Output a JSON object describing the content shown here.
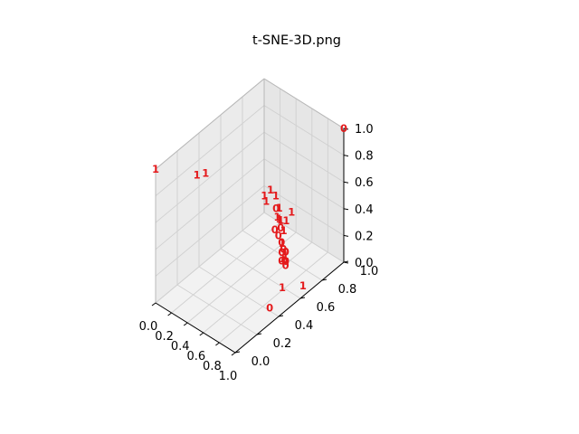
{
  "chart_data": {
    "type": "scatter",
    "projection": "3d",
    "title": "t-SNE-3D.png",
    "xlabel": "",
    "ylabel": "",
    "zlabel": "",
    "xlim": [
      0,
      1
    ],
    "ylim": [
      0,
      1
    ],
    "zlim": [
      0,
      1
    ],
    "x_ticks": [
      "0.0",
      "0.2",
      "0.4",
      "0.6",
      "0.8",
      "1.0"
    ],
    "y_ticks": [
      "0.0",
      "0.2",
      "0.4",
      "0.6",
      "0.8",
      "1.0"
    ],
    "z_ticks": [
      "0.0",
      "0.2",
      "0.4",
      "0.6",
      "0.8",
      "1.0"
    ],
    "grid": true,
    "marker": "text-label",
    "point_color": "#e41a1c",
    "pane_color": "#f2f2f2",
    "grid_color": "#d0d0d0",
    "points": [
      {
        "x": 0.0,
        "y": 0.0,
        "z": 1.0,
        "label": "1"
      },
      {
        "x": 1.0,
        "y": 1.0,
        "z": 1.0,
        "label": "0"
      },
      {
        "x": 0.0,
        "y": 0.38,
        "z": 0.7,
        "label": "1"
      },
      {
        "x": 0.0,
        "y": 0.46,
        "z": 0.66,
        "label": "1"
      },
      {
        "x": 0.91,
        "y": 0.69,
        "z": 0.0,
        "label": "1"
      },
      {
        "x": 0.86,
        "y": 0.42,
        "z": 0.0,
        "label": "0"
      },
      {
        "x": 0.18,
        "y": 0.87,
        "z": 0.28,
        "label": "1"
      },
      {
        "x": 0.23,
        "y": 0.89,
        "z": 0.33,
        "label": "1"
      },
      {
        "x": 0.23,
        "y": 0.85,
        "z": 0.27,
        "label": "1"
      },
      {
        "x": 0.31,
        "y": 0.88,
        "z": 0.32,
        "label": "1"
      },
      {
        "x": 0.38,
        "y": 0.86,
        "z": 0.27,
        "label": "1"
      },
      {
        "x": 0.41,
        "y": 0.82,
        "z": 0.24,
        "label": "1"
      },
      {
        "x": 0.46,
        "y": 0.8,
        "z": 0.26,
        "label": "1"
      },
      {
        "x": 0.34,
        "y": 0.86,
        "z": 0.25,
        "label": "0"
      },
      {
        "x": 0.42,
        "y": 0.79,
        "z": 0.17,
        "label": "0"
      },
      {
        "x": 0.52,
        "y": 0.75,
        "z": 0.19,
        "label": "0"
      },
      {
        "x": 0.56,
        "y": 0.77,
        "z": 0.23,
        "label": "1"
      },
      {
        "x": 0.6,
        "y": 0.72,
        "z": 0.19,
        "label": "0"
      },
      {
        "x": 0.65,
        "y": 0.7,
        "z": 0.17,
        "label": "0"
      },
      {
        "x": 0.7,
        "y": 0.68,
        "z": 0.15,
        "label": "1"
      },
      {
        "x": 0.72,
        "y": 0.66,
        "z": 0.14,
        "label": "0"
      },
      {
        "x": 0.75,
        "y": 0.65,
        "z": 0.15,
        "label": "0"
      },
      {
        "x": 0.73,
        "y": 0.66,
        "z": 0.18,
        "label": "1"
      },
      {
        "x": 0.76,
        "y": 0.64,
        "z": 0.13,
        "label": "0"
      },
      {
        "x": 0.55,
        "y": 0.8,
        "z": 0.28,
        "label": "1"
      },
      {
        "x": 0.63,
        "y": 0.79,
        "z": 0.38,
        "label": "1"
      },
      {
        "x": 0.63,
        "y": 0.7,
        "z": 0.14,
        "label": "0"
      },
      {
        "x": 0.67,
        "y": 0.68,
        "z": 0.12,
        "label": "1"
      },
      {
        "x": 0.8,
        "y": 0.58,
        "z": 0.02,
        "label": "1"
      },
      {
        "x": 0.6,
        "y": 0.72,
        "z": 0.05,
        "label": "0"
      },
      {
        "x": 0.48,
        "y": 0.8,
        "z": 0.2,
        "label": "0"
      },
      {
        "x": 0.58,
        "y": 0.74,
        "z": 0.16,
        "label": "1"
      },
      {
        "x": 0.68,
        "y": 0.7,
        "z": 0.16,
        "label": "0"
      },
      {
        "x": 0.44,
        "y": 0.83,
        "z": 0.22,
        "label": "1"
      }
    ]
  }
}
